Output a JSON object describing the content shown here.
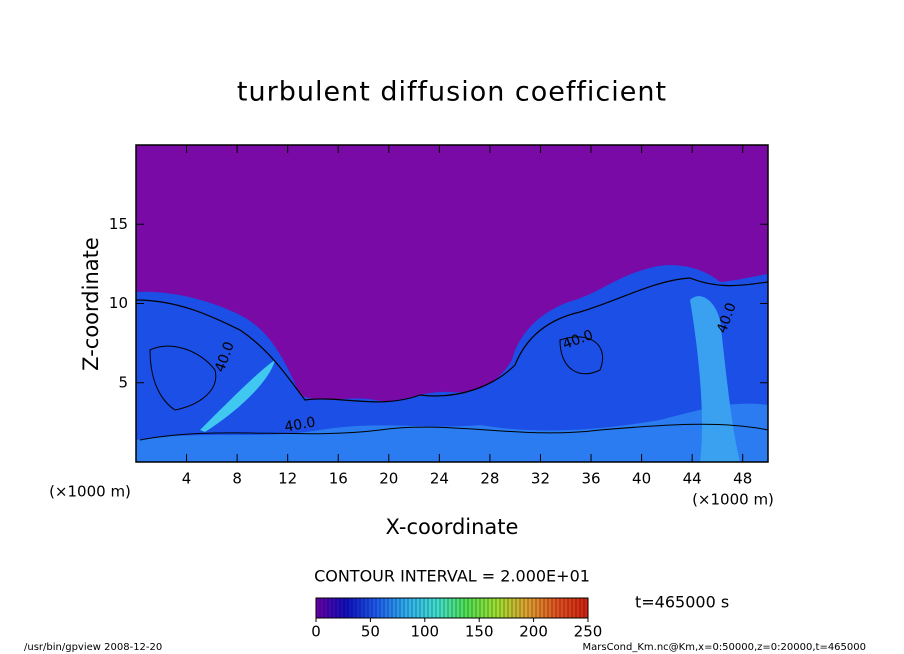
{
  "chart_data": {
    "type": "contour",
    "title": "turbulent diffusion coefficient",
    "xlabel": "X-coordinate",
    "ylabel": "Z-coordinate",
    "x_unit": "(×1000 m)",
    "xlim": [
      0,
      50
    ],
    "xticks": [
      4,
      8,
      12,
      16,
      20,
      24,
      28,
      32,
      36,
      40,
      44,
      48
    ],
    "ylim": [
      0,
      20
    ],
    "yticks": [
      5,
      10,
      15
    ],
    "contour_labels": [
      "40.0",
      "40.0",
      "40.0",
      "40.0"
    ],
    "contour_interval": "CONTOUR INTERVAL = 2.000E+01",
    "time_label": "t=465000 s",
    "colorbar": {
      "lim": [
        0,
        250
      ],
      "ticks": [
        0,
        50,
        100,
        150,
        200,
        250
      ],
      "colors": [
        "#6a00a8",
        "#1010c0",
        "#1e5cf0",
        "#30b0f0",
        "#40e0d0",
        "#50e050",
        "#a0e030",
        "#e0a030",
        "#e05020",
        "#d02010"
      ]
    },
    "footer_left": "/usr/bin/gpview   2008-12-20",
    "footer_right": "MarsCond_Km.nc@Km,x=0:50000,z=0:20000,t=465000"
  }
}
